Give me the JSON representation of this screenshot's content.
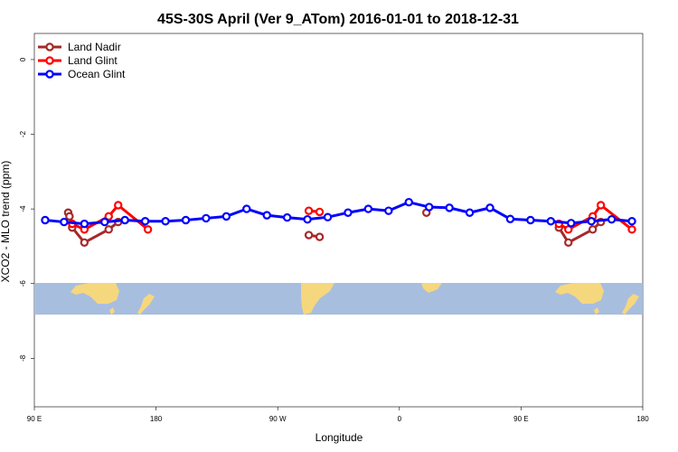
{
  "chart_data": {
    "type": "line",
    "title": "45S-30S April (Ver 9_ATom)   2016-01-01 to 2018-12-31",
    "xlabel": "Longitude",
    "ylabel": "XCO2 - MLO trend (ppm)",
    "xlim": [
      90,
      540
    ],
    "ylim": [
      -9.3,
      0.7
    ],
    "x_ticks": [
      {
        "value": 90,
        "label": "90 E"
      },
      {
        "value": 180,
        "label": "180"
      },
      {
        "value": 270,
        "label": "90 W"
      },
      {
        "value": 360,
        "label": "0"
      },
      {
        "value": 450,
        "label": "90 E"
      },
      {
        "value": 540,
        "label": "180"
      }
    ],
    "y_ticks": [
      {
        "value": 0,
        "label": "0"
      },
      {
        "value": -2,
        "label": "-2"
      },
      {
        "value": -4,
        "label": "-4"
      },
      {
        "value": -6,
        "label": "-6"
      },
      {
        "value": -8,
        "label": "-8"
      }
    ],
    "legend_position": "top-left",
    "map_band": {
      "y_top": -5.9,
      "y_bottom": -6.8,
      "ocean_color": "#a8bedf",
      "land_color": "#f5d77e"
    },
    "series": [
      {
        "name": "Land Nadir",
        "color": "#a52a2a",
        "segments": [
          [
            [
              118,
              -4.5
            ],
            [
              127,
              -4.9
            ],
            [
              145,
              -4.55
            ],
            [
              152,
              -4.35
            ]
          ],
          [
            [
              293,
              -4.7
            ],
            [
              301,
              -4.75
            ]
          ],
          [
            [
              115,
              -4.1
            ],
            [
              116,
              -4.2
            ]
          ],
          [
            [
              380,
              -4.1
            ]
          ],
          [
            [
              478,
              -4.5
            ],
            [
              485,
              -4.9
            ],
            [
              503,
              -4.55
            ],
            [
              509,
              -4.35
            ]
          ]
        ]
      },
      {
        "name": "Land Glint",
        "color": "#ff0000",
        "segments": [
          [
            [
              118,
              -4.4
            ],
            [
              127,
              -4.55
            ],
            [
              145,
              -4.2
            ],
            [
              152,
              -3.9
            ],
            [
              174,
              -4.55
            ]
          ],
          [
            [
              293,
              -4.05
            ],
            [
              301,
              -4.08
            ]
          ],
          [
            [
              478,
              -4.4
            ],
            [
              485,
              -4.55
            ],
            [
              503,
              -4.2
            ],
            [
              509,
              -3.9
            ],
            [
              532,
              -4.55
            ]
          ]
        ]
      },
      {
        "name": "Ocean Glint",
        "color": "#0000ff",
        "segments": [
          [
            [
              98,
              -4.3
            ],
            [
              112,
              -4.35
            ],
            [
              127,
              -4.4
            ],
            [
              142,
              -4.35
            ],
            [
              157,
              -4.3
            ],
            [
              172,
              -4.33
            ],
            [
              187,
              -4.33
            ],
            [
              202,
              -4.3
            ],
            [
              217,
              -4.25
            ],
            [
              232,
              -4.2
            ],
            [
              247,
              -4.0
            ],
            [
              262,
              -4.17
            ],
            [
              277,
              -4.23
            ],
            [
              292,
              -4.28
            ],
            [
              307,
              -4.22
            ],
            [
              322,
              -4.1
            ],
            [
              337,
              -4.0
            ],
            [
              352,
              -4.05
            ],
            [
              367,
              -3.82
            ],
            [
              382,
              -3.95
            ],
            [
              397,
              -3.97
            ],
            [
              412,
              -4.1
            ],
            [
              427,
              -3.97
            ],
            [
              442,
              -4.27
            ],
            [
              457,
              -4.3
            ],
            [
              472,
              -4.33
            ],
            [
              487,
              -4.38
            ],
            [
              502,
              -4.33
            ],
            [
              517,
              -4.28
            ],
            [
              532,
              -4.33
            ]
          ]
        ]
      }
    ]
  }
}
